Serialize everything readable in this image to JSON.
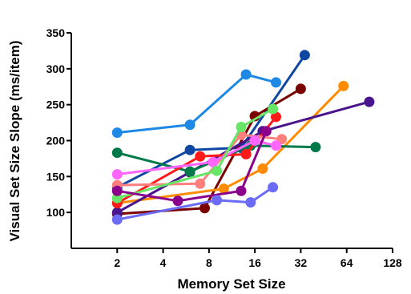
{
  "chart_data": {
    "type": "line",
    "xlabel": "Memory Set Size",
    "ylabel": "Visual Set Size Slope (ms/item)",
    "x_scale": "log2",
    "xlim": [
      1,
      128
    ],
    "ylim": [
      50,
      350
    ],
    "x_ticks": [
      2,
      4,
      8,
      16,
      32,
      64,
      128
    ],
    "x_tick_labels": [
      "2",
      "4",
      "8",
      "16",
      "32",
      "64",
      "128"
    ],
    "y_ticks": [
      100,
      150,
      200,
      250,
      300,
      350
    ],
    "y_tick_labels": [
      "100",
      "150",
      "200",
      "250",
      "300",
      "350"
    ],
    "grid": false,
    "legend": "none",
    "series": [
      {
        "color": "#1e88e5",
        "points": [
          [
            2,
            211
          ],
          [
            6,
            222
          ],
          [
            14,
            292
          ],
          [
            22,
            281
          ]
        ]
      },
      {
        "color": "#0d47a1",
        "points": [
          [
            2,
            135
          ],
          [
            6,
            187
          ],
          [
            13,
            190
          ],
          [
            34,
            319
          ]
        ]
      },
      {
        "color": "#7a0000",
        "points": [
          [
            2,
            98
          ],
          [
            7.5,
            106
          ],
          [
            16,
            234
          ],
          [
            32,
            272
          ]
        ]
      },
      {
        "color": "#ff8c00",
        "points": [
          [
            2,
            113
          ],
          [
            10,
            133
          ],
          [
            18,
            161
          ],
          [
            61,
            276
          ]
        ]
      },
      {
        "color": "#4a148c",
        "points": [
          [
            2,
            100
          ],
          [
            6,
            156
          ],
          [
            18,
            213
          ],
          [
            90,
            254
          ]
        ]
      },
      {
        "color": "#00794a",
        "points": [
          [
            2,
            183
          ],
          [
            6,
            157
          ],
          [
            15,
            193
          ],
          [
            40,
            191
          ]
        ]
      },
      {
        "color": "#ff1a1a",
        "points": [
          [
            2,
            113
          ],
          [
            7,
            178
          ],
          [
            14,
            181
          ],
          [
            22,
            233
          ]
        ]
      },
      {
        "color": "#ff7f7f",
        "points": [
          [
            2,
            138
          ],
          [
            7,
            140
          ],
          [
            13,
            208
          ],
          [
            24,
            202
          ]
        ]
      },
      {
        "color": "#ff66ff",
        "points": [
          [
            2,
            153
          ],
          [
            8.5,
            170
          ],
          [
            16,
            200
          ],
          [
            22,
            193
          ]
        ]
      },
      {
        "color": "#66e566",
        "points": [
          [
            2,
            120
          ],
          [
            9,
            158
          ],
          [
            13,
            219
          ],
          [
            21,
            244
          ]
        ]
      },
      {
        "color": "#8b008b",
        "points": [
          [
            2,
            130
          ],
          [
            5,
            116
          ],
          [
            13,
            130
          ],
          [
            19,
            213
          ]
        ]
      },
      {
        "color": "#6b6bf5",
        "points": [
          [
            2,
            90
          ],
          [
            9,
            117
          ],
          [
            15,
            114
          ],
          [
            21,
            135
          ]
        ]
      }
    ]
  }
}
